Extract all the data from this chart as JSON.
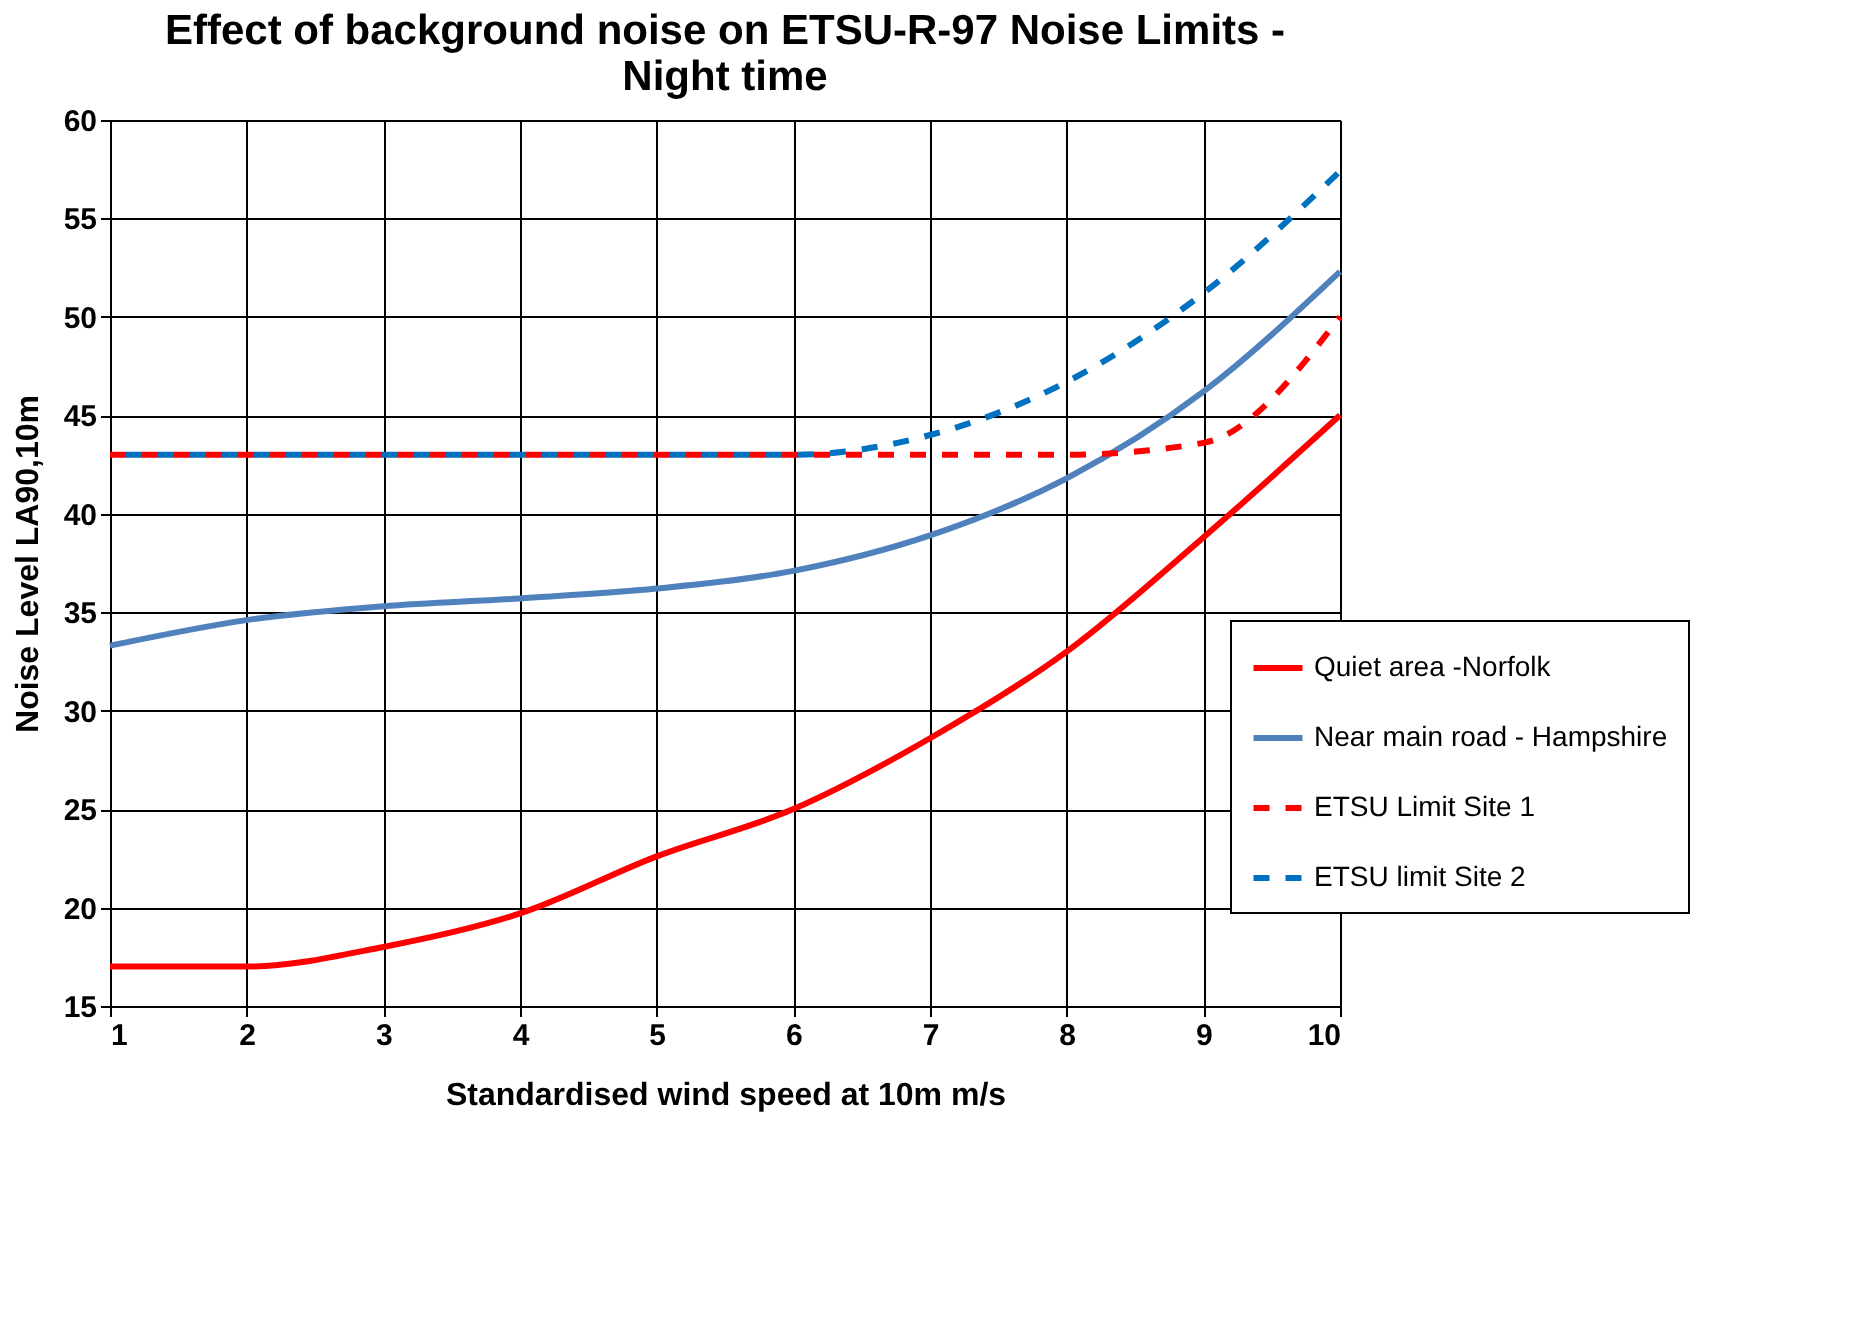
{
  "chart_data": {
    "type": "line",
    "title": "Effect of background noise on ETSU-R-97 Noise Limits - Night time",
    "xlabel": "Standardised  wind speed at 10m m/s",
    "ylabel": "Noise Level LA90,10m",
    "x": [
      1,
      2,
      3,
      4,
      5,
      6,
      7,
      8,
      9,
      10
    ],
    "xlim": [
      1,
      10
    ],
    "xticks": [
      1,
      2,
      3,
      4,
      5,
      6,
      7,
      8,
      9,
      10
    ],
    "ylim": [
      15,
      60
    ],
    "yticks": [
      15,
      20,
      25,
      30,
      35,
      40,
      45,
      50,
      55,
      60
    ],
    "grid": true,
    "legend": "right",
    "marker": "none",
    "series": [
      {
        "name": "Quiet area -Norfolk",
        "color": "#ff0000",
        "line_style": "solid",
        "values": [
          17,
          17,
          18,
          19.7,
          22.6,
          25,
          28.6,
          33,
          38.8,
          45
        ]
      },
      {
        "name": "Near main road - Hampshire",
        "color": "#4f81bd",
        "line_style": "solid",
        "values": [
          33.3,
          34.6,
          35.3,
          35.7,
          36.2,
          37.1,
          38.9,
          41.8,
          46.2,
          52.3
        ]
      },
      {
        "name": "ETSU Limit Site 1",
        "color": "#ff0000",
        "line_style": "dashed",
        "values": [
          43,
          43,
          43,
          43,
          43,
          43,
          43,
          43,
          43.6,
          50
        ]
      },
      {
        "name": "ETSU limit Site 2",
        "color": "#0070c0",
        "line_style": "dashed",
        "values": [
          43,
          43,
          43,
          43,
          43,
          43,
          44,
          46.7,
          51.2,
          57.4
        ]
      }
    ]
  }
}
